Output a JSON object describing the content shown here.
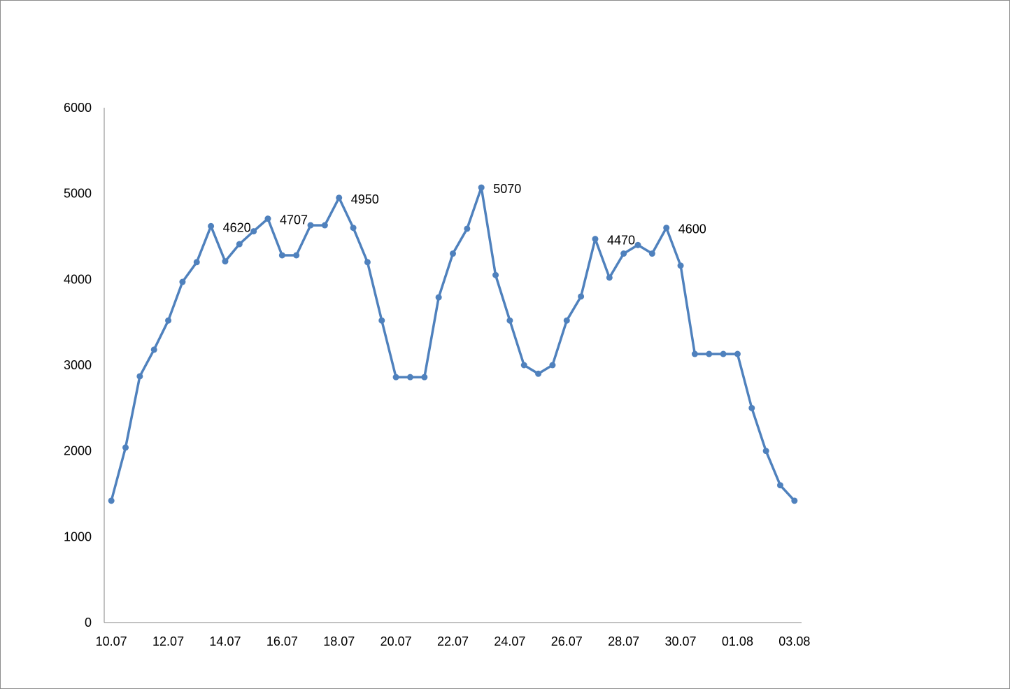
{
  "chart_data": {
    "type": "line",
    "title": "",
    "xlabel": "",
    "ylabel": "",
    "ylim": [
      0,
      6000
    ],
    "yticks": [
      0,
      1000,
      2000,
      3000,
      4000,
      5000,
      6000
    ],
    "x_tick_labels": [
      "10.07",
      "12.07",
      "14.07",
      "16.07",
      "18.07",
      "20.07",
      "22.07",
      "24.07",
      "26.07",
      "28.07",
      "30.07",
      "01.08",
      "03.08"
    ],
    "grid": false,
    "legend": "none",
    "x": [
      "10.07",
      "10.07",
      "11.07",
      "11.07",
      "12.07",
      "12.07",
      "13.07",
      "13.07",
      "14.07",
      "14.07",
      "15.07",
      "15.07",
      "16.07",
      "16.07",
      "17.07",
      "17.07",
      "18.07",
      "18.07",
      "19.07",
      "19.07",
      "20.07",
      "20.07",
      "21.07",
      "21.07",
      "22.07",
      "22.07",
      "23.07",
      "23.07",
      "24.07",
      "24.07",
      "25.07",
      "25.07",
      "26.07",
      "26.07",
      "27.07",
      "27.07",
      "28.07",
      "28.07",
      "29.07",
      "29.07",
      "30.07",
      "30.07",
      "31.07",
      "31.07",
      "01.08",
      "01.08",
      "02.08",
      "02.08",
      "03.08"
    ],
    "series": [
      {
        "color": "#4f81bd",
        "values": [
          1420,
          2040,
          2870,
          3180,
          3520,
          3970,
          4200,
          4620,
          4210,
          4410,
          4560,
          4707,
          4280,
          4280,
          4630,
          4630,
          4950,
          4600,
          4200,
          3520,
          2860,
          2860,
          2860,
          3790,
          4300,
          4590,
          5070,
          4050,
          3520,
          3000,
          2900,
          3000,
          3520,
          3800,
          4470,
          4020,
          4300,
          4400,
          4300,
          4600,
          4160,
          3130,
          3130,
          3130,
          3130,
          2500,
          2000,
          1600,
          1420
        ]
      }
    ],
    "data_labels": [
      {
        "index": 7,
        "text": "4620"
      },
      {
        "index": 11,
        "text": "4707"
      },
      {
        "index": 16,
        "text": "4950"
      },
      {
        "index": 26,
        "text": "5070"
      },
      {
        "index": 34,
        "text": "4470"
      },
      {
        "index": 39,
        "text": "4600"
      }
    ]
  }
}
